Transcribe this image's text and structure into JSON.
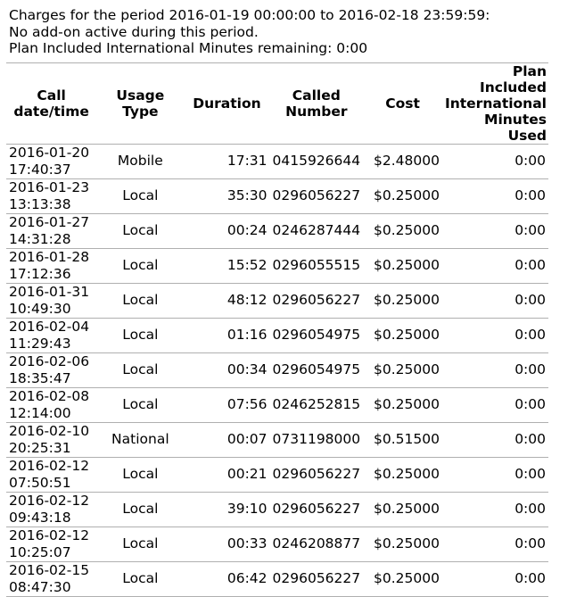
{
  "intro": {
    "line1": "Charges for the period 2016-01-19 00:00:00 to 2016-02-18 23:59:59:",
    "line2": "No add-on active during this period.",
    "line3": "Plan Included International Minutes remaining: 0:00"
  },
  "table": {
    "headers": {
      "date": [
        "Call",
        "date/time"
      ],
      "type": [
        "Usage",
        "Type"
      ],
      "duration": "Duration",
      "number": [
        "Called",
        "Number"
      ],
      "cost": "Cost",
      "intl": [
        "Plan Included",
        "International",
        "Minutes Used"
      ]
    },
    "rows": [
      {
        "date": "2016-01-20",
        "time": "17:40:37",
        "type": "Mobile",
        "duration": "17:31",
        "number": "0415926644",
        "cost": "$2.48000",
        "intl": "0:00"
      },
      {
        "date": "2016-01-23",
        "time": "13:13:38",
        "type": "Local",
        "duration": "35:30",
        "number": "0296056227",
        "cost": "$0.25000",
        "intl": "0:00"
      },
      {
        "date": "2016-01-27",
        "time": "14:31:28",
        "type": "Local",
        "duration": "00:24",
        "number": "0246287444",
        "cost": "$0.25000",
        "intl": "0:00"
      },
      {
        "date": "2016-01-28",
        "time": "17:12:36",
        "type": "Local",
        "duration": "15:52",
        "number": "0296055515",
        "cost": "$0.25000",
        "intl": "0:00"
      },
      {
        "date": "2016-01-31",
        "time": "10:49:30",
        "type": "Local",
        "duration": "48:12",
        "number": "0296056227",
        "cost": "$0.25000",
        "intl": "0:00"
      },
      {
        "date": "2016-02-04",
        "time": "11:29:43",
        "type": "Local",
        "duration": "01:16",
        "number": "0296054975",
        "cost": "$0.25000",
        "intl": "0:00"
      },
      {
        "date": "2016-02-06",
        "time": "18:35:47",
        "type": "Local",
        "duration": "00:34",
        "number": "0296054975",
        "cost": "$0.25000",
        "intl": "0:00"
      },
      {
        "date": "2016-02-08",
        "time": "12:14:00",
        "type": "Local",
        "duration": "07:56",
        "number": "0246252815",
        "cost": "$0.25000",
        "intl": "0:00"
      },
      {
        "date": "2016-02-10",
        "time": "20:25:31",
        "type": "National",
        "duration": "00:07",
        "number": "0731198000",
        "cost": "$0.51500",
        "intl": "0:00"
      },
      {
        "date": "2016-02-12",
        "time": "07:50:51",
        "type": "Local",
        "duration": "00:21",
        "number": "0296056227",
        "cost": "$0.25000",
        "intl": "0:00"
      },
      {
        "date": "2016-02-12",
        "time": "09:43:18",
        "type": "Local",
        "duration": "39:10",
        "number": "0296056227",
        "cost": "$0.25000",
        "intl": "0:00"
      },
      {
        "date": "2016-02-12",
        "time": "10:25:07",
        "type": "Local",
        "duration": "00:33",
        "number": "0246208877",
        "cost": "$0.25000",
        "intl": "0:00"
      },
      {
        "date": "2016-02-15",
        "time": "08:47:30",
        "type": "Local",
        "duration": "06:42",
        "number": "0296056227",
        "cost": "$0.25000",
        "intl": "0:00"
      }
    ]
  }
}
